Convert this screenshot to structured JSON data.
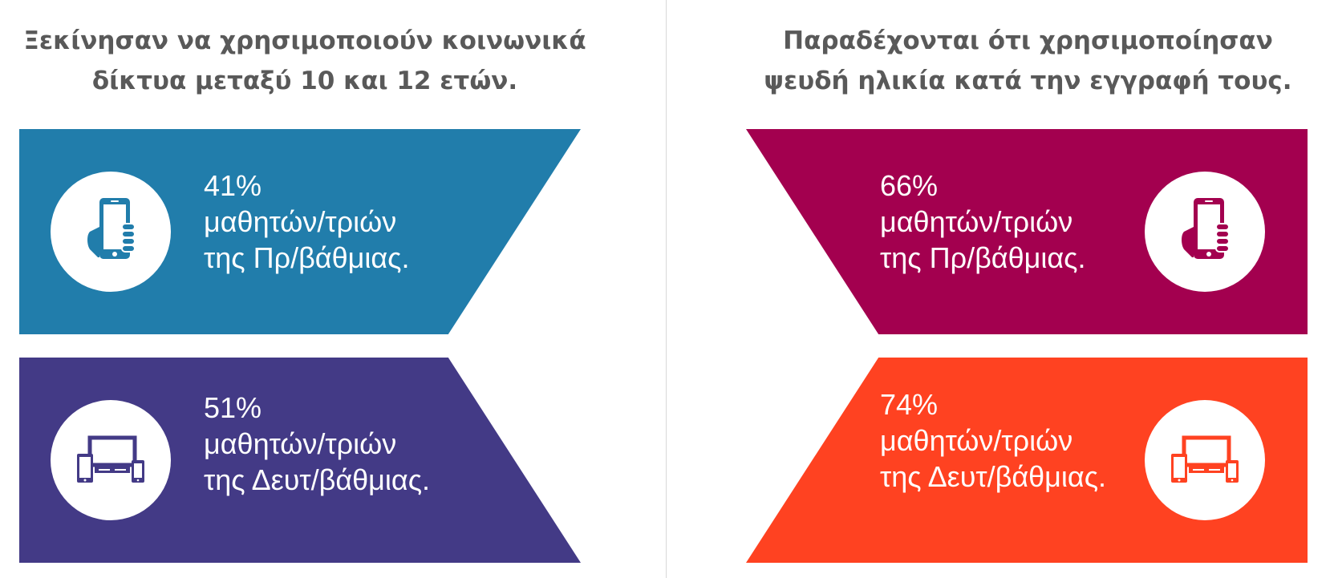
{
  "left_section": {
    "heading_line1": "Ξεκίνησαν να χρησιμοποιούν κοινωνικά",
    "heading_line2": "δίκτυα μεταξύ 10 και 12 ετών.",
    "cards": [
      {
        "percent": "41%",
        "line2": "μαθητών/τριών",
        "line3": "της Πρ/βάθμιας.",
        "icon": "hand-smartphone-icon",
        "color": "#217DAB"
      },
      {
        "percent": "51%",
        "line2": "μαθητών/τριών",
        "line3": "της Δευτ/βάθμιας.",
        "icon": "multiple-devices-icon",
        "color": "#433A86"
      }
    ]
  },
  "right_section": {
    "heading_line1": "Παραδέχονται ότι χρησιμοποίησαν",
    "heading_line2": "ψευδή ηλικία κατά την εγγραφή τους.",
    "cards": [
      {
        "percent": "66%",
        "line2": "μαθητών/τριών",
        "line3": "της Πρ/βάθμιας.",
        "icon": "hand-smartphone-icon",
        "color": "#A3004F"
      },
      {
        "percent": "74%",
        "line2": "μαθητών/τριών",
        "line3": "της Δευτ/βάθμιας.",
        "icon": "multiple-devices-icon",
        "color": "#FF4221"
      }
    ]
  }
}
